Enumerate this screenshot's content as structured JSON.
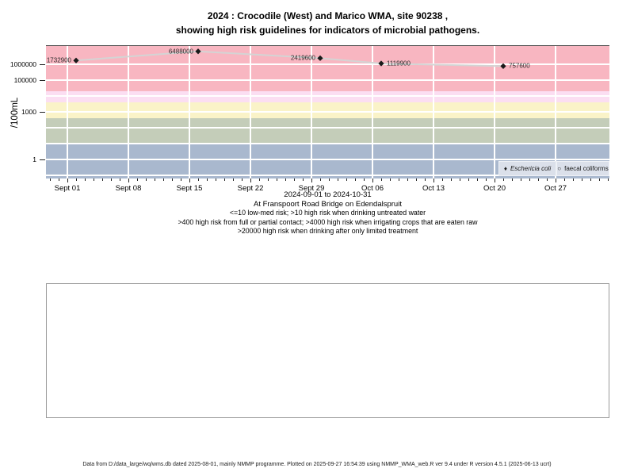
{
  "title": {
    "line1": "2024 : Crocodile (West) and Marico WMA, site 90238 ,",
    "line2": "showing high risk guidelines for indicators of microbial pathogens."
  },
  "chart_data": {
    "type": "line",
    "y_scale": "log10",
    "ylabel": "/100mL",
    "xlabel": "2024-09-01 to 2024-10-31",
    "x_start": "2024-09-01",
    "x_end": "2024-10-31",
    "y_tick_values": [
      1,
      1000,
      100000,
      1000000
    ],
    "y_tick_labels": [
      "1",
      "1000",
      "100000",
      "1000000"
    ],
    "x_tick_days": [
      0,
      7,
      14,
      21,
      28,
      35,
      42,
      49,
      56
    ],
    "x_tick_labels": [
      "Sept 01",
      "Sept 08",
      "Sept 15",
      "Sept 22",
      "Sept 29",
      "Oct 06",
      "Oct 13",
      "Oct 20",
      "Oct 27"
    ],
    "gridline_decades": [
      -1,
      0,
      1,
      2,
      3,
      4,
      5,
      6
    ],
    "grid_color": "#ffffff",
    "series": [
      {
        "name": "Eschericia coli",
        "marker": "filled-diamond",
        "line_color": "#d4d4d4",
        "marker_color": "#1a1a1a",
        "points": [
          {
            "date": "2024-09-02",
            "value": 1732900,
            "label": "1732900",
            "label_side": "left"
          },
          {
            "date": "2024-09-16",
            "value": 6488000,
            "label": "6488000",
            "label_side": "left"
          },
          {
            "date": "2024-09-30",
            "value": 2419600,
            "label": "2419600",
            "label_side": "left"
          },
          {
            "date": "2024-10-07",
            "value": 1119900,
            "label": "1119900",
            "label_side": "right"
          },
          {
            "date": "2024-10-21",
            "value": 757600,
            "label": "757600",
            "label_side": "right"
          }
        ]
      },
      {
        "name": "faecal coliforms",
        "marker": "open-circle",
        "points": []
      }
    ],
    "risk_bands": [
      {
        "range": "<=10",
        "min": null,
        "max": 10,
        "color": "#a9b8ce",
        "meaning": "low-med risk"
      },
      {
        "range": ">10",
        "min": 10,
        "max": 400,
        "color": "#c4cdb9",
        "meaning": "high risk when drinking untreated water"
      },
      {
        "range": ">400",
        "min": 400,
        "max": 4000,
        "color": "#faf3c8",
        "meaning": "high risk from full or partial contact"
      },
      {
        "range": ">4000",
        "min": 4000,
        "max": 20000,
        "color": "#fbdef2",
        "meaning": "high risk when irrigating crops that are eaten raw"
      },
      {
        "range": ">20000",
        "min": 20000,
        "max": null,
        "color": "#f8b6c1",
        "meaning": "high risk when drinking after only limited treatment"
      }
    ],
    "legend_position": "bottom-right"
  },
  "legend": {
    "items": [
      {
        "label": "Eschericia coli",
        "glyph": "♦",
        "marker": "filled-diamond"
      },
      {
        "label": "faecal coliforms",
        "glyph": "○",
        "marker": "open-circle"
      }
    ]
  },
  "subtitles": [
    "At Franspoort Road Bridge on Edendalspruit",
    "<=10 low-med risk; >10 high risk when drinking untreated water",
    ">400 high risk from full or partial contact; >4000 high risk when irrigating crops that are eaten raw",
    ">20000 high risk when drinking after only limited treatment"
  ],
  "footer": "Data from D:/data_large/wq/wms.db dated 2025-08-01, mainly NMMP programme. Plotted on 2025-09-27 16:54:39 using NMMP_WMA_web.R ver 9.4 under R version 4.5.1 (2025-06-13 ucrt)"
}
